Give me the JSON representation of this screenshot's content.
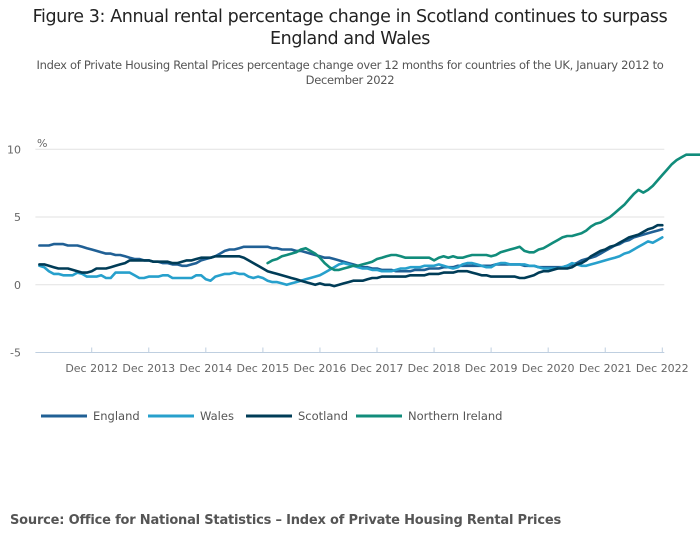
{
  "title": "Figure 3: Annual rental percentage change in Scotland continues to surpass England and Wales",
  "subtitle": "Index of Private Housing Rental Prices percentage change over 12 months for countries of the UK, January 2012 to December 2022",
  "source": "Source: Office for National Statistics – Index of Private Housing Rental Prices",
  "chart_data": {
    "type": "line",
    "title": "Figure 3: Annual rental percentage change in Scotland continues to surpass England and Wales",
    "subtitle": "Index of Private Housing Rental Prices percentage change over 12 months for countries of the UK, January 2012 to December 2022",
    "xlabel": "",
    "ylabel": "%",
    "ylim": [
      -5,
      10
    ],
    "yticks": [
      10,
      5,
      0,
      -5
    ],
    "x_start": "Jan 2012",
    "x_end": "Dec 2022",
    "x_interval": "monthly",
    "xticks": [
      "Dec 2012",
      "Dec 2013",
      "Dec 2014",
      "Dec 2015",
      "Dec 2016",
      "Dec 2017",
      "Dec 2018",
      "Dec 2019",
      "Dec 2020",
      "Dec 2021",
      "Dec 2022"
    ],
    "grid": "horizontal",
    "legend_position": "bottom",
    "series": [
      {
        "name": "England",
        "color": "#206095",
        "start": "Jan 2012",
        "values": [
          2.9,
          2.9,
          2.9,
          3.0,
          3.0,
          3.0,
          2.9,
          2.9,
          2.9,
          2.8,
          2.7,
          2.6,
          2.5,
          2.4,
          2.3,
          2.3,
          2.2,
          2.2,
          2.1,
          2.0,
          1.9,
          1.9,
          1.8,
          1.8,
          1.7,
          1.7,
          1.6,
          1.6,
          1.5,
          1.5,
          1.4,
          1.4,
          1.5,
          1.6,
          1.8,
          1.9,
          2.0,
          2.1,
          2.3,
          2.5,
          2.6,
          2.6,
          2.7,
          2.8,
          2.8,
          2.8,
          2.8,
          2.8,
          2.8,
          2.7,
          2.7,
          2.6,
          2.6,
          2.6,
          2.5,
          2.5,
          2.4,
          2.3,
          2.2,
          2.1,
          2.0,
          2.0,
          1.9,
          1.8,
          1.7,
          1.6,
          1.5,
          1.4,
          1.3,
          1.3,
          1.2,
          1.2,
          1.1,
          1.1,
          1.1,
          1.0,
          1.0,
          1.0,
          1.0,
          1.1,
          1.1,
          1.1,
          1.2,
          1.2,
          1.2,
          1.3,
          1.3,
          1.3,
          1.4,
          1.4,
          1.4,
          1.4,
          1.4,
          1.4,
          1.4,
          1.4,
          1.5,
          1.5,
          1.5,
          1.5,
          1.5,
          1.5,
          1.4,
          1.4,
          1.4,
          1.3,
          1.3,
          1.3,
          1.3,
          1.3,
          1.3,
          1.4,
          1.5,
          1.6,
          1.8,
          1.9,
          2.0,
          2.1,
          2.3,
          2.5,
          2.7,
          2.9,
          3.0,
          3.2,
          3.3,
          3.5,
          3.6,
          3.7,
          3.8,
          3.9,
          4.0,
          4.1
        ]
      },
      {
        "name": "Wales",
        "color": "#27a0cc",
        "start": "Jan 2012",
        "values": [
          1.4,
          1.3,
          1.0,
          0.8,
          0.8,
          0.7,
          0.7,
          0.7,
          0.9,
          0.8,
          0.6,
          0.6,
          0.6,
          0.7,
          0.5,
          0.5,
          0.9,
          0.9,
          0.9,
          0.9,
          0.7,
          0.5,
          0.5,
          0.6,
          0.6,
          0.6,
          0.7,
          0.7,
          0.5,
          0.5,
          0.5,
          0.5,
          0.5,
          0.7,
          0.7,
          0.4,
          0.3,
          0.6,
          0.7,
          0.8,
          0.8,
          0.9,
          0.8,
          0.8,
          0.6,
          0.5,
          0.6,
          0.5,
          0.3,
          0.2,
          0.2,
          0.1,
          0.0,
          0.1,
          0.2,
          0.3,
          0.4,
          0.5,
          0.6,
          0.7,
          0.9,
          1.1,
          1.3,
          1.5,
          1.6,
          1.5,
          1.4,
          1.3,
          1.2,
          1.2,
          1.1,
          1.1,
          1.0,
          1.0,
          1.0,
          1.1,
          1.2,
          1.2,
          1.3,
          1.3,
          1.3,
          1.4,
          1.4,
          1.4,
          1.5,
          1.4,
          1.3,
          1.2,
          1.3,
          1.5,
          1.6,
          1.6,
          1.5,
          1.4,
          1.3,
          1.3,
          1.5,
          1.6,
          1.6,
          1.5,
          1.5,
          1.5,
          1.5,
          1.4,
          1.4,
          1.3,
          1.2,
          1.2,
          1.2,
          1.2,
          1.3,
          1.4,
          1.6,
          1.5,
          1.4,
          1.4,
          1.5,
          1.6,
          1.7,
          1.8,
          1.9,
          2.0,
          2.1,
          2.3,
          2.4,
          2.6,
          2.8,
          3.0,
          3.2,
          3.1,
          3.3,
          3.5
        ]
      },
      {
        "name": "Scotland",
        "color": "#003c57",
        "start": "Jan 2012",
        "values": [
          1.5,
          1.5,
          1.4,
          1.3,
          1.2,
          1.2,
          1.2,
          1.1,
          1.0,
          0.9,
          0.9,
          1.0,
          1.2,
          1.2,
          1.2,
          1.3,
          1.4,
          1.5,
          1.6,
          1.8,
          1.8,
          1.8,
          1.8,
          1.8,
          1.7,
          1.7,
          1.7,
          1.7,
          1.6,
          1.6,
          1.7,
          1.8,
          1.8,
          1.9,
          2.0,
          2.0,
          2.0,
          2.1,
          2.1,
          2.1,
          2.1,
          2.1,
          2.1,
          2.0,
          1.8,
          1.6,
          1.4,
          1.2,
          1.0,
          0.9,
          0.8,
          0.7,
          0.6,
          0.5,
          0.4,
          0.3,
          0.2,
          0.1,
          0.0,
          0.1,
          0.0,
          0.0,
          -0.1,
          0.0,
          0.1,
          0.2,
          0.3,
          0.3,
          0.3,
          0.4,
          0.5,
          0.5,
          0.6,
          0.6,
          0.6,
          0.6,
          0.6,
          0.6,
          0.7,
          0.7,
          0.7,
          0.7,
          0.8,
          0.8,
          0.8,
          0.9,
          0.9,
          0.9,
          1.0,
          1.0,
          1.0,
          0.9,
          0.8,
          0.7,
          0.7,
          0.6,
          0.6,
          0.6,
          0.6,
          0.6,
          0.6,
          0.5,
          0.5,
          0.6,
          0.7,
          0.9,
          1.0,
          1.0,
          1.1,
          1.2,
          1.2,
          1.2,
          1.3,
          1.5,
          1.6,
          1.8,
          2.1,
          2.3,
          2.5,
          2.6,
          2.8,
          2.9,
          3.1,
          3.3,
          3.5,
          3.6,
          3.7,
          3.9,
          4.1,
          4.2,
          4.4,
          4.4
        ]
      },
      {
        "name": "Northern Ireland",
        "color": "#118c7b",
        "start": "Jan 2016",
        "values": [
          1.6,
          1.8,
          1.9,
          2.1,
          2.2,
          2.3,
          2.4,
          2.6,
          2.7,
          2.5,
          2.3,
          2.0,
          1.6,
          1.3,
          1.1,
          1.1,
          1.2,
          1.3,
          1.4,
          1.4,
          1.5,
          1.6,
          1.7,
          1.9,
          2.0,
          2.1,
          2.2,
          2.2,
          2.1,
          2.0,
          2.0,
          2.0,
          2.0,
          2.0,
          2.0,
          1.8,
          2.0,
          2.1,
          2.0,
          2.1,
          2.0,
          2.0,
          2.1,
          2.2,
          2.2,
          2.2,
          2.2,
          2.1,
          2.2,
          2.4,
          2.5,
          2.6,
          2.7,
          2.8,
          2.5,
          2.4,
          2.4,
          2.6,
          2.7,
          2.9,
          3.1,
          3.3,
          3.5,
          3.6,
          3.6,
          3.7,
          3.8,
          4.0,
          4.3,
          4.5,
          4.6,
          4.8,
          5.0,
          5.3,
          5.6,
          5.9,
          6.3,
          6.7,
          7.0,
          6.8,
          7.0,
          7.3,
          7.7,
          8.1,
          8.5,
          8.9,
          9.2,
          9.4,
          9.6,
          9.6,
          9.6,
          9.6
        ]
      }
    ]
  }
}
